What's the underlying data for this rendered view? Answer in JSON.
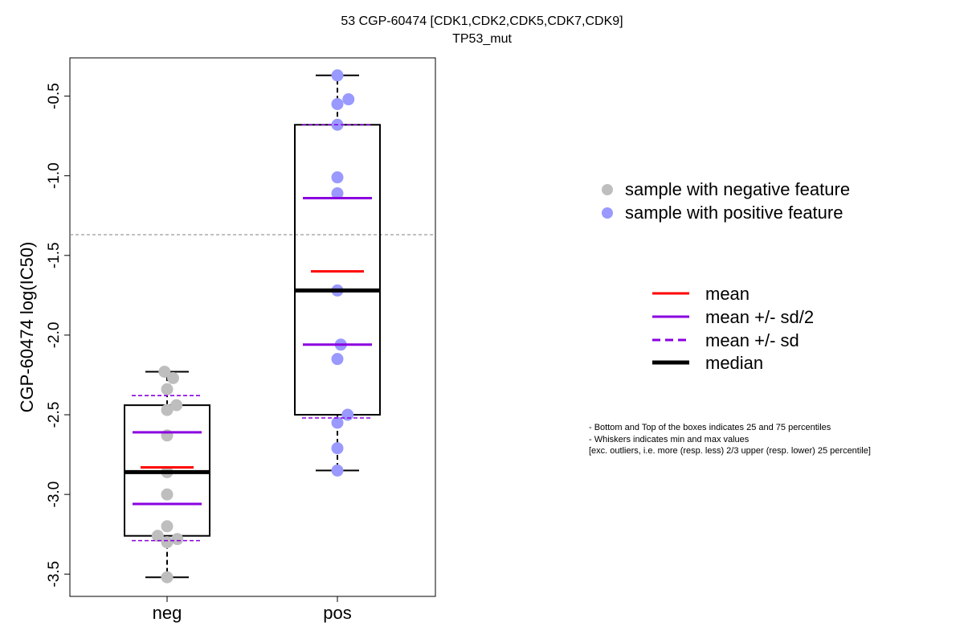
{
  "chart_data": {
    "type": "box",
    "title": "53 CGP-60474 [CDK1,CDK2,CDK5,CDK7,CDK9]",
    "subtitle": "TP53_mut",
    "xlabel": "",
    "ylabel": "CGP-60474 log(IC50)",
    "ylim": [
      -3.64,
      -0.26
    ],
    "y_ticks": [
      -3.5,
      -3.0,
      -2.5,
      -2.0,
      -1.5,
      -1.0,
      -0.5
    ],
    "y_tick_labels": [
      "-3.5",
      "-3.0",
      "-2.5",
      "-2.0",
      "-1.5",
      "-1.0",
      "-0.5"
    ],
    "categories": [
      "neg",
      "pos"
    ],
    "reference_line": -1.37,
    "groups": [
      {
        "name": "neg",
        "color": "#BEBEBE",
        "whisker_low": -3.52,
        "q1": -3.26,
        "median": -2.86,
        "q3": -2.44,
        "whisker_high": -2.23,
        "mean": -2.83,
        "mean_minus_half_sd": -3.06,
        "mean_plus_half_sd": -2.61,
        "mean_minus_sd": -3.29,
        "mean_plus_sd": -2.38,
        "points": [
          {
            "x": -0.03,
            "y": -2.23
          },
          {
            "x": 0.07,
            "y": -2.27
          },
          {
            "x": 0.0,
            "y": -2.34
          },
          {
            "x": 0.11,
            "y": -2.44
          },
          {
            "x": 0.0,
            "y": -2.47
          },
          {
            "x": 0.0,
            "y": -2.63
          },
          {
            "x": 0.0,
            "y": -2.86
          },
          {
            "x": 0.0,
            "y": -3.0
          },
          {
            "x": 0.0,
            "y": -3.2
          },
          {
            "x": -0.11,
            "y": -3.26
          },
          {
            "x": 0.12,
            "y": -3.28
          },
          {
            "x": 0.0,
            "y": -3.3
          },
          {
            "x": 0.0,
            "y": -3.52
          }
        ]
      },
      {
        "name": "pos",
        "color": "#9999FF",
        "whisker_low": -2.85,
        "q1": -2.5,
        "median": -1.72,
        "q3": -0.68,
        "whisker_high": -0.37,
        "mean": -1.6,
        "mean_minus_half_sd": -2.06,
        "mean_plus_half_sd": -1.14,
        "mean_minus_sd": -2.52,
        "mean_plus_sd": -0.68,
        "points": [
          {
            "x": 0.0,
            "y": -0.37
          },
          {
            "x": 0.13,
            "y": -0.52
          },
          {
            "x": 0.0,
            "y": -0.55
          },
          {
            "x": 0.0,
            "y": -0.68
          },
          {
            "x": 0.0,
            "y": -1.01
          },
          {
            "x": 0.0,
            "y": -1.11
          },
          {
            "x": 0.0,
            "y": -1.72
          },
          {
            "x": 0.04,
            "y": -2.06
          },
          {
            "x": 0.0,
            "y": -2.15
          },
          {
            "x": 0.12,
            "y": -2.5
          },
          {
            "x": 0.0,
            "y": -2.55
          },
          {
            "x": 0.0,
            "y": -2.71
          },
          {
            "x": 0.0,
            "y": -2.85
          }
        ]
      }
    ],
    "colors": {
      "mean": "#FF0000",
      "sd": "#8A00E0",
      "median": "#000000",
      "reference": "#808080"
    },
    "legend_points": [
      {
        "label": "sample with negative feature",
        "color": "#BEBEBE"
      },
      {
        "label": "sample with positive feature",
        "color": "#9999FF"
      }
    ],
    "legend_lines": [
      {
        "label": "mean",
        "style": "solid-red"
      },
      {
        "label": "mean +/- sd/2",
        "style": "solid-purple"
      },
      {
        "label": "mean +/- sd",
        "style": "dashed-purple"
      },
      {
        "label": "median",
        "style": "thick-black"
      }
    ],
    "footnote": [
      "- Bottom and Top of the boxes indicates 25 and 75 percentiles",
      "- Whiskers indicates min and max values",
      "[exc. outliers, i.e. more (resp. less) 2/3 upper (resp. lower) 25 percentile]"
    ]
  }
}
